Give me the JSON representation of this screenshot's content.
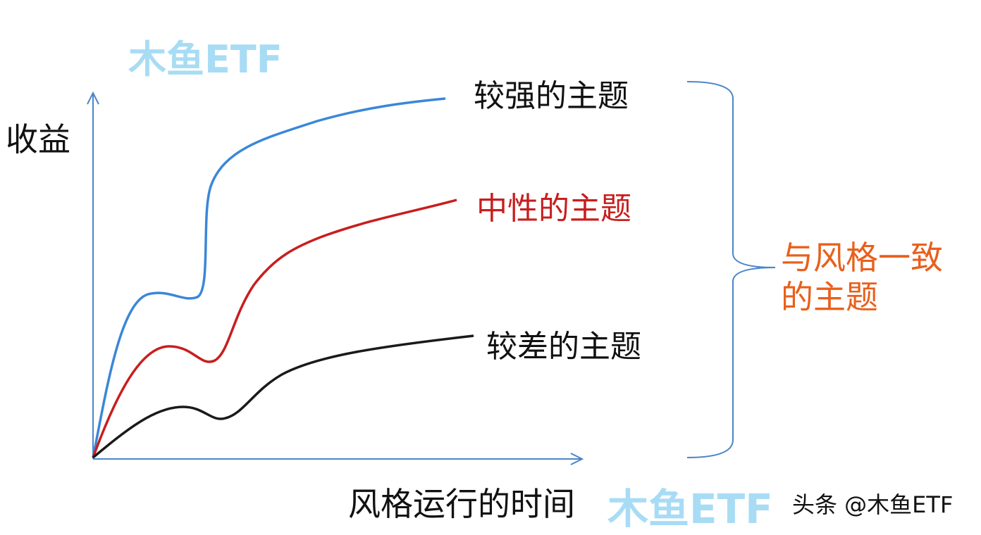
{
  "watermark_top": "木鱼ETF",
  "watermark_bottom": "木鱼ETF",
  "credit": "头条 @木鱼ETF",
  "y_axis_label": "收益",
  "x_axis_label": "风格运行的时间",
  "curves": [
    {
      "label": "较强的主题",
      "color": "#3a87d8"
    },
    {
      "label": "中性的主题",
      "color": "#c81e1e"
    },
    {
      "label": "较差的主题",
      "color": "#1a1a1a"
    }
  ],
  "bracket_label_line1": "与风格一致",
  "bracket_label_line2": "的主题",
  "colors": {
    "axis": "#4a86c8",
    "bracket": "#4a86c8",
    "bracket_label": "#e8601c",
    "watermark": "#a8dcf5"
  }
}
